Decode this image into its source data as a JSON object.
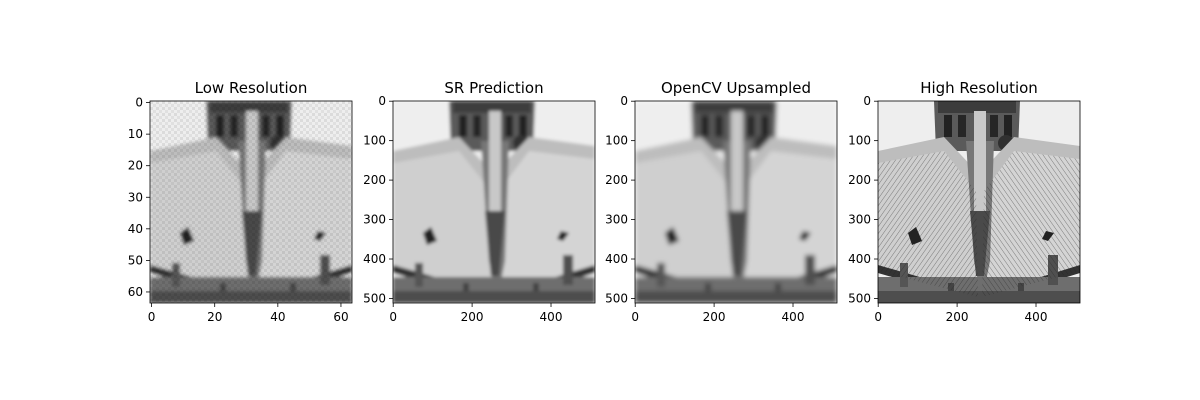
{
  "chart_data": [
    {
      "type": "image",
      "title": "Low Resolution",
      "xticks": [
        "0",
        "20",
        "40",
        "60"
      ],
      "yticks": [
        "0",
        "10",
        "20",
        "30",
        "40",
        "50",
        "60"
      ],
      "xlim": [
        -0.5,
        63.5
      ],
      "ylim": [
        63.5,
        -0.5
      ],
      "image": "grayscale-cathedral-roof-pixelated"
    },
    {
      "type": "image",
      "title": "SR Prediction",
      "xticks": [
        "0",
        "200",
        "400"
      ],
      "yticks": [
        "0",
        "100",
        "200",
        "300",
        "400",
        "500"
      ],
      "xlim": [
        -0.5,
        511.5
      ],
      "ylim": [
        511.5,
        -0.5
      ],
      "image": "grayscale-cathedral-roof-super-resolved"
    },
    {
      "type": "image",
      "title": "OpenCV Upsampled",
      "xticks": [
        "0",
        "200",
        "400"
      ],
      "yticks": [
        "0",
        "100",
        "200",
        "300",
        "400",
        "500"
      ],
      "xlim": [
        -0.5,
        511.5
      ],
      "ylim": [
        511.5,
        -0.5
      ],
      "image": "grayscale-cathedral-roof-blurry"
    },
    {
      "type": "image",
      "title": "High Resolution",
      "xticks": [
        "0",
        "200",
        "400"
      ],
      "yticks": [
        "0",
        "100",
        "200",
        "300",
        "400",
        "500"
      ],
      "xlim": [
        -0.5,
        511.5
      ],
      "ylim": [
        511.5,
        -0.5
      ],
      "image": "grayscale-cathedral-roof-sharp"
    }
  ]
}
